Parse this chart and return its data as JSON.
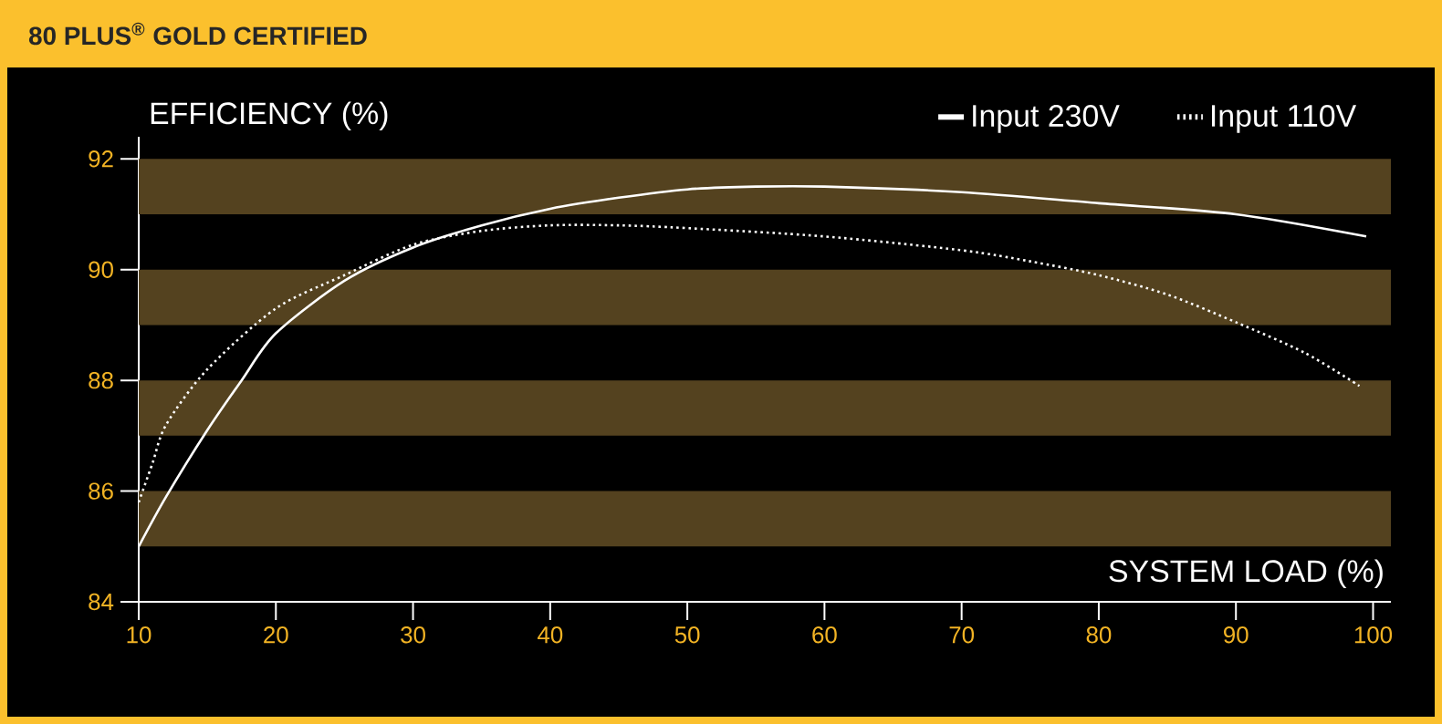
{
  "chart_data": {
    "type": "line",
    "title": "80 PLUS$^{®}$ GOLD CERTIFIED",
    "xlabel": "SYSTEM LOAD (%)",
    "ylabel": "EFFICIENCY (%)",
    "xlim": [
      10,
      101.3
    ],
    "ylim": [
      84,
      92.4
    ],
    "xticks": [
      10,
      20,
      30,
      40,
      50,
      60,
      70,
      80,
      90,
      100
    ],
    "yticks": [
      84,
      86,
      88,
      90,
      92
    ],
    "legend": "top right",
    "grid": false,
    "marker": "none",
    "bands": [
      {
        "axis": "y",
        "from": 85,
        "to": 86,
        "color": "#54421f"
      },
      {
        "axis": "y",
        "from": 87,
        "to": 88,
        "color": "#54421f"
      },
      {
        "axis": "y",
        "from": 89,
        "to": 90,
        "color": "#54421f"
      },
      {
        "axis": "y",
        "from": 91,
        "to": 92,
        "color": "#54421f"
      }
    ],
    "series": [
      {
        "name": "Input 230V",
        "color": "#ffffff",
        "line_style": "solid",
        "x": [
          10,
          12,
          15,
          17.5,
          20,
          25,
          30,
          35,
          40,
          45,
          50,
          55,
          60,
          70,
          80,
          90,
          99.5
        ],
        "values": [
          85.0,
          85.9,
          87.1,
          88.0,
          88.85,
          89.8,
          90.4,
          90.8,
          91.1,
          91.3,
          91.45,
          91.5,
          91.5,
          91.4,
          91.2,
          91.0,
          90.6
        ]
      },
      {
        "name": "Input 110V",
        "color": "#ffffff",
        "line_style": "dotted",
        "x": [
          10,
          11,
          12,
          15,
          20,
          25,
          30,
          35,
          40,
          45,
          50,
          60,
          70,
          75,
          80,
          85,
          90,
          95,
          99
        ],
        "values": [
          85.8,
          86.5,
          87.2,
          88.2,
          89.3,
          89.9,
          90.45,
          90.7,
          90.8,
          90.8,
          90.75,
          90.6,
          90.35,
          90.15,
          89.9,
          89.55,
          89.05,
          88.5,
          87.9
        ]
      }
    ]
  }
}
